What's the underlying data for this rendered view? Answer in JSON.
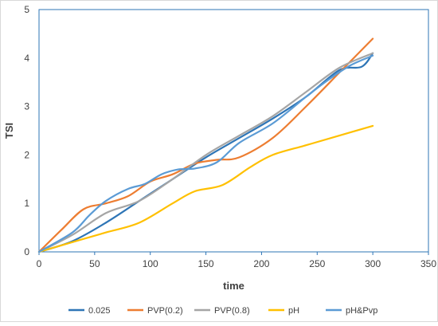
{
  "chart_data": {
    "type": "line",
    "xlabel": "time",
    "ylabel": "TSI",
    "xlim": [
      0,
      350
    ],
    "ylim": [
      0,
      5
    ],
    "xticks": [
      0,
      50,
      100,
      150,
      200,
      250,
      300,
      350
    ],
    "yticks": [
      0,
      1,
      2,
      3,
      4,
      5
    ],
    "grid": false,
    "legend_position": "bottom",
    "series": [
      {
        "name": "0.025",
        "color": "#2e75b6",
        "x": [
          0,
          30,
          60,
          90,
          120,
          150,
          180,
          210,
          240,
          270,
          290,
          300
        ],
        "y": [
          0,
          0.22,
          0.6,
          1.05,
          1.5,
          1.95,
          2.35,
          2.75,
          3.2,
          3.75,
          3.82,
          4.1
        ]
      },
      {
        "name": "PVP(0.2)",
        "color": "#ed7d31",
        "x": [
          0,
          20,
          40,
          60,
          80,
          100,
          120,
          140,
          160,
          180,
          210,
          240,
          270,
          300
        ],
        "y": [
          0,
          0.45,
          0.88,
          1.0,
          1.15,
          1.45,
          1.6,
          1.82,
          1.9,
          1.95,
          2.35,
          3.0,
          3.7,
          4.4
        ]
      },
      {
        "name": "PVP(0.8)",
        "color": "#a5a5a5",
        "x": [
          0,
          30,
          60,
          90,
          120,
          150,
          180,
          210,
          240,
          270,
          300
        ],
        "y": [
          0,
          0.35,
          0.8,
          1.05,
          1.5,
          2.0,
          2.4,
          2.8,
          3.3,
          3.8,
          4.1
        ]
      },
      {
        "name": "pH",
        "color": "#ffc000",
        "x": [
          0,
          30,
          60,
          90,
          120,
          140,
          165,
          190,
          210,
          240,
          270,
          300
        ],
        "y": [
          0,
          0.2,
          0.4,
          0.6,
          1.0,
          1.25,
          1.38,
          1.75,
          2.0,
          2.2,
          2.4,
          2.6
        ]
      },
      {
        "name": "pH&Pvp",
        "color": "#5b9bd5",
        "x": [
          0,
          30,
          45,
          60,
          80,
          95,
          110,
          125,
          140,
          160,
          180,
          210,
          240,
          260,
          280,
          300
        ],
        "y": [
          0,
          0.4,
          0.75,
          1.05,
          1.3,
          1.4,
          1.6,
          1.7,
          1.72,
          1.85,
          2.25,
          2.65,
          3.2,
          3.55,
          3.85,
          4.05
        ]
      }
    ]
  }
}
